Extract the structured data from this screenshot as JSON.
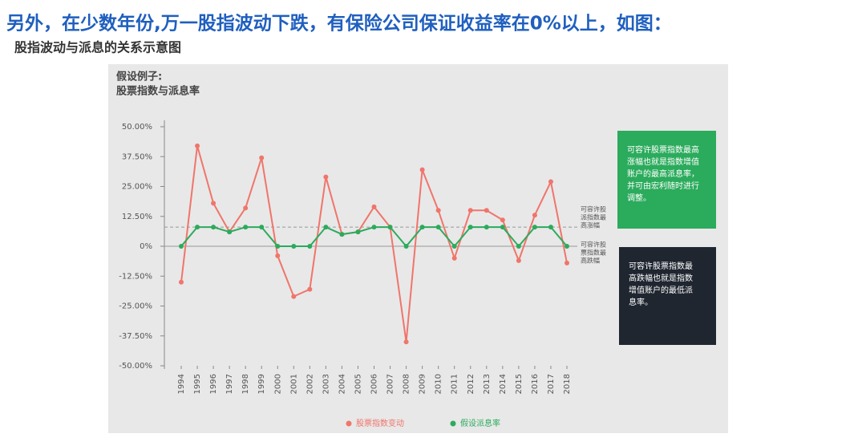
{
  "chart_data": {
    "type": "line",
    "heading": "另外，在少数年份,万一股指波动下跌，有保险公司保证收益率在0%以上，如图：",
    "subheading": "股指波动与派息的关系示意图",
    "title": [
      "假设例子:",
      "股票指数与派息率"
    ],
    "categories": [
      "1994",
      "1995",
      "1996",
      "1997",
      "1998",
      "1999",
      "2000",
      "2001",
      "2002",
      "2003",
      "2004",
      "2005",
      "2006",
      "2007",
      "2008",
      "2009",
      "2010",
      "2011",
      "2012",
      "2013",
      "2014",
      "2015",
      "2016",
      "2017",
      "2018"
    ],
    "series": [
      {
        "name": "股票指数变动",
        "color": "#f0756b",
        "values": [
          -15,
          42,
          18,
          6,
          16,
          37,
          -4,
          -21,
          -18,
          29,
          5,
          6,
          16.5,
          8,
          -40,
          32,
          15,
          -5,
          15,
          15,
          11,
          -6,
          13,
          27,
          -7
        ]
      },
      {
        "name": "假设派息率",
        "color": "#2bab5c",
        "values": [
          0,
          8,
          8,
          6,
          8,
          8,
          0,
          0,
          0,
          8,
          5,
          6,
          8,
          8,
          0,
          8,
          8,
          0,
          8,
          8,
          8,
          0,
          8,
          8,
          0
        ]
      }
    ],
    "ylim": [
      -50,
      50
    ],
    "yticks": [
      {
        "value": 50,
        "label": "50.00%"
      },
      {
        "value": 37.5,
        "label": "37.50%"
      },
      {
        "value": 25,
        "label": "25.00%"
      },
      {
        "value": 12.5,
        "label": "12.50%"
      },
      {
        "value": 0,
        "label": "0%"
      },
      {
        "value": -12.5,
        "label": "-12.50%"
      },
      {
        "value": -25,
        "label": "-25.00%"
      },
      {
        "value": -37.5,
        "label": "-37.50%"
      },
      {
        "value": -50,
        "label": "-50.00%"
      }
    ],
    "ref_lines": [
      {
        "value": 8,
        "label": [
          "可容许股",
          "派指数最",
          "高涨幅"
        ]
      },
      {
        "value": 0,
        "label": [
          "可容许股",
          "票指数最",
          "高跌幅"
        ]
      }
    ],
    "notes": [
      {
        "color": "#2bab5c",
        "lines": [
          "可容许股票指数最高",
          "涨幅也就是指数增值",
          "账户的最高派息率，",
          "并可由宏利随时进行",
          "调整。"
        ]
      },
      {
        "color": "#1f2630",
        "lines": [
          "可容许股票指数最",
          "高跌幅也就是指数",
          "增值账户的最低派",
          "息率。"
        ]
      }
    ]
  }
}
